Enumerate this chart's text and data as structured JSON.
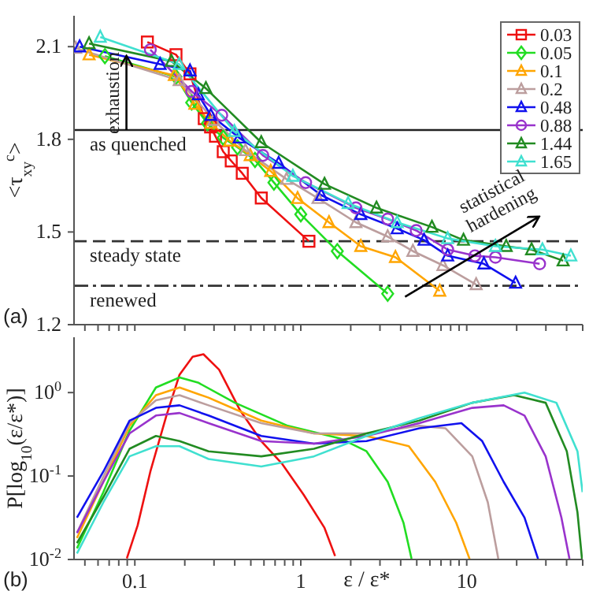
{
  "chart_data": [
    {
      "type": "line",
      "log": "x",
      "ylabel": "<τ$_{xy}$$^{c}$>",
      "xlim": [
        0.043,
        50
      ],
      "ylim": [
        1.2,
        2.2
      ],
      "tick_labels": "y",
      "legend": "top right",
      "line_style": "solid",
      "xticks": [
        {
          "value": 0.05,
          "label": null
        },
        {
          "value": 0.06,
          "label": null
        },
        {
          "value": 0.07,
          "label": null
        },
        {
          "value": 0.08,
          "label": null
        },
        {
          "value": 0.09,
          "label": null
        },
        0.1,
        {
          "value": 0.2,
          "label": null
        },
        {
          "value": 0.3,
          "label": null
        },
        {
          "value": 0.4,
          "label": null
        },
        {
          "value": 0.5,
          "label": null
        },
        {
          "value": 0.6,
          "label": null
        },
        {
          "value": 0.7,
          "label": null
        },
        {
          "value": 0.8,
          "label": null
        },
        {
          "value": 0.9,
          "label": null
        },
        1,
        {
          "value": 2,
          "label": null
        },
        {
          "value": 3,
          "label": null
        },
        {
          "value": 4,
          "label": null
        },
        {
          "value": 5,
          "label": null
        },
        {
          "value": 6,
          "label": null
        },
        {
          "value": 7,
          "label": null
        },
        {
          "value": 8,
          "label": null
        },
        {
          "value": 9,
          "label": null
        },
        10,
        {
          "value": 20,
          "label": null
        },
        {
          "value": 30,
          "label": null
        },
        {
          "value": 40,
          "label": null
        },
        {
          "value": 50,
          "label": null
        }
      ],
      "yticks": [
        1.2,
        1.5,
        1.8,
        2.1
      ],
      "series": [
        {
          "name": "0.03",
          "color": "#ee1111",
          "marker": "square",
          "x": [
            0.119,
            0.177,
            0.215,
            0.262,
            0.286,
            0.306,
            0.341,
            0.381,
            0.444,
            0.578,
            1.12
          ],
          "values": [
            2.115,
            2.074,
            2.012,
            1.867,
            1.84,
            1.81,
            1.76,
            1.73,
            1.69,
            1.61,
            1.47
          ]
        },
        {
          "name": "0.05",
          "color": "#22dd22",
          "marker": "diamond",
          "x": [
            0.066,
            0.177,
            0.22,
            0.274,
            0.341,
            0.416,
            0.53,
            0.689,
            1,
            1.66,
            3.34
          ],
          "values": [
            2.069,
            2.002,
            1.919,
            1.852,
            1.805,
            1.774,
            1.733,
            1.66,
            1.557,
            1.438,
            1.3
          ]
        },
        {
          "name": "0.1",
          "color": "#ffa500",
          "marker": "triangle",
          "x": [
            0.053,
            0.173,
            0.23,
            0.287,
            0.373,
            0.496,
            0.659,
            0.957,
            1.48,
            2.3,
            3.72,
            6.88
          ],
          "values": [
            2.074,
            2.007,
            1.914,
            1.852,
            1.795,
            1.748,
            1.697,
            1.609,
            1.531,
            1.454,
            1.418,
            1.309
          ]
        },
        {
          "name": "0.2",
          "color": "#bc9e9e",
          "marker": "triangle",
          "x": [
            0.044,
            0.185,
            0.299,
            0.464,
            0.821,
            1.27,
            2.15,
            3.34,
            4.74,
            7.19,
            11.4
          ],
          "values": [
            2.095,
            1.991,
            1.862,
            1.764,
            1.671,
            1.609,
            1.531,
            1.485,
            1.438,
            1.392,
            1.33
          ]
        },
        {
          "name": "0.48",
          "color": "#1111ee",
          "marker": "triangle",
          "x": [
            0.0465,
            0.142,
            0.215,
            0.241,
            0.287,
            0.425,
            0.736,
            1.33,
            2.3,
            3.81,
            5.53,
            7.68,
            12.7,
            19.7
          ],
          "values": [
            2.1,
            2.043,
            2.022,
            1.945,
            1.878,
            1.805,
            1.723,
            1.619,
            1.557,
            1.511,
            1.474,
            1.423,
            1.397,
            1.335
          ]
        },
        {
          "name": "0.88",
          "color": "#9933cc",
          "marker": "circle",
          "x": [
            0.124,
            0.22,
            0.334,
            0.591,
            1.07,
            2.15,
            3.34,
            4.96,
            7.68,
            11.2,
            14.9,
            27.5
          ],
          "values": [
            2.09,
            1.955,
            1.878,
            1.748,
            1.66,
            1.578,
            1.542,
            1.505,
            1.443,
            1.423,
            1.418,
            1.397
          ]
        },
        {
          "name": "1.44",
          "color": "#228b22",
          "marker": "triangle",
          "x": [
            0.053,
            0.166,
            0.268,
            0.578,
            1.39,
            2.86,
            6.17,
            9.56,
            17.3,
            24.6,
            38.1
          ],
          "values": [
            2.11,
            2.053,
            1.965,
            1.79,
            1.655,
            1.578,
            1.516,
            1.474,
            1.454,
            1.443,
            1.407
          ]
        },
        {
          "name": "1.65",
          "color": "#40e0d0",
          "marker": "triangle",
          "x": [
            0.0619,
            0.185,
            0.398,
            0.896,
            1.93,
            3.81,
            7.68,
            14.9,
            28.6,
            42.4
          ],
          "values": [
            2.131,
            2.043,
            1.826,
            1.681,
            1.593,
            1.531,
            1.479,
            1.454,
            1.443,
            1.423
          ]
        }
      ],
      "ref_lines": [
        {
          "axis": "y",
          "value": 1.83,
          "label": "as quenched",
          "color": "#222222",
          "line_style": "solid"
        },
        {
          "axis": "y",
          "value": 1.47,
          "label": "steady state",
          "color": "#333333",
          "line_style": "dashed"
        },
        {
          "axis": "y",
          "value": 1.326,
          "label": "renewed",
          "color": "#333333",
          "line_style": "dashdot"
        }
      ],
      "annotations": [
        "exhaustion",
        "statistical hardening",
        "(a)"
      ]
    },
    {
      "type": "line",
      "log": "xy",
      "xlabel": "ε / ε*",
      "ylabel": "P[log$_{10}$(ε/ε*)]",
      "xlim": [
        0.043,
        50
      ],
      "ylim": [
        0.01,
        4.6
      ],
      "marker": "none",
      "line_style": "solid",
      "xticks": [
        {
          "value": 0.05,
          "label": null
        },
        {
          "value": 0.06,
          "label": null
        },
        {
          "value": 0.07,
          "label": null
        },
        {
          "value": 0.08,
          "label": null
        },
        {
          "value": 0.09,
          "label": null
        },
        0.1,
        {
          "value": 0.2,
          "label": null
        },
        {
          "value": 0.3,
          "label": null
        },
        {
          "value": 0.4,
          "label": null
        },
        {
          "value": 0.5,
          "label": null
        },
        {
          "value": 0.6,
          "label": null
        },
        {
          "value": 0.7,
          "label": null
        },
        {
          "value": 0.8,
          "label": null
        },
        {
          "value": 0.9,
          "label": null
        },
        1,
        {
          "value": 2,
          "label": null
        },
        {
          "value": 3,
          "label": null
        },
        {
          "value": 4,
          "label": null
        },
        {
          "value": 5,
          "label": null
        },
        {
          "value": 6,
          "label": null
        },
        {
          "value": 7,
          "label": null
        },
        {
          "value": 8,
          "label": null
        },
        {
          "value": 9,
          "label": null
        },
        10,
        {
          "value": 20,
          "label": null
        },
        {
          "value": 30,
          "label": null
        },
        {
          "value": 40,
          "label": null
        },
        {
          "value": 50,
          "label": null
        }
      ],
      "yticks": [
        {
          "value": 0.01,
          "label": "10$^{-2}$"
        },
        {
          "value": 0.1,
          "label": "10$^{-1}$"
        },
        {
          "value": 1,
          "label": "10$^{0}$"
        }
      ],
      "series": [
        {
          "color": "#ee1111",
          "x": [
            0.0895,
            0.104,
            0.124,
            0.155,
            0.186,
            0.223,
            0.259,
            0.322,
            0.431,
            0.578,
            0.774,
            1.04,
            1.39,
            1.61
          ],
          "values": [
            0.0103,
            0.0257,
            0.113,
            0.531,
            1.64,
            2.68,
            2.88,
            1.88,
            0.611,
            0.262,
            0.139,
            0.0598,
            0.0239,
            0.011
          ]
        },
        {
          "color": "#22dd22",
          "x": [
            0.0448,
            0.0646,
            0.0929,
            0.134,
            0.186,
            0.24,
            0.401,
            0.834,
            1.73,
            2.49,
            3.34,
            4.16,
            4.65
          ],
          "values": [
            0.0136,
            0.0641,
            0.35,
            1.15,
            1.52,
            1.32,
            0.755,
            0.4,
            0.282,
            0.198,
            0.0851,
            0.0275,
            0.0102
          ]
        },
        {
          "color": "#ffa500",
          "x": [
            0.0448,
            0.0646,
            0.0929,
            0.134,
            0.186,
            0.278,
            0.578,
            1.2,
            2.49,
            4.48,
            6.46,
            8.65,
            10.4
          ],
          "values": [
            0.0181,
            0.0851,
            0.4,
            0.931,
            1.15,
            0.869,
            0.461,
            0.324,
            0.302,
            0.228,
            0.0851,
            0.0275,
            0.0102
          ]
        },
        {
          "color": "#bc9e9e",
          "x": [
            0.0448,
            0.0646,
            0.0929,
            0.134,
            0.186,
            0.278,
            0.578,
            1.2,
            2.49,
            5.18,
            7.46,
            10.8,
            13.4,
            15.5
          ],
          "values": [
            0.0208,
            0.098,
            0.43,
            0.809,
            0.931,
            0.703,
            0.43,
            0.324,
            0.324,
            0.4,
            0.373,
            0.172,
            0.0484,
            0.0102
          ]
        },
        {
          "color": "#1111ee",
          "x": [
            0.0448,
            0.0646,
            0.0929,
            0.134,
            0.186,
            0.278,
            0.578,
            1.2,
            2.49,
            5.18,
            9.29,
            12.4,
            16.7,
            22.3,
            26.9
          ],
          "values": [
            0.0318,
            0.113,
            0.461,
            0.656,
            0.703,
            0.531,
            0.302,
            0.244,
            0.262,
            0.373,
            0.43,
            0.262,
            0.0851,
            0.0318,
            0.0102
          ]
        },
        {
          "color": "#9933cc",
          "x": [
            0.0448,
            0.0646,
            0.0929,
            0.134,
            0.186,
            0.278,
            0.578,
            1.2,
            2.49,
            5.18,
            10.8,
            16.7,
            22.3,
            29.9,
            37.2,
            41.6
          ],
          "values": [
            0.0208,
            0.0851,
            0.324,
            0.531,
            0.569,
            0.43,
            0.262,
            0.244,
            0.302,
            0.43,
            0.656,
            0.703,
            0.531,
            0.172,
            0.0318,
            0.0102
          ]
        },
        {
          "color": "#228b22",
          "x": [
            0.0448,
            0.0646,
            0.0929,
            0.134,
            0.186,
            0.278,
            0.578,
            1.2,
            2.49,
            5.18,
            10.8,
            19.3,
            29.9,
            40.1,
            46.5,
            49.5
          ],
          "values": [
            0.0157,
            0.0557,
            0.212,
            0.302,
            0.262,
            0.198,
            0.172,
            0.212,
            0.324,
            0.461,
            0.755,
            0.931,
            0.755,
            0.198,
            0.0366,
            0.0102
          ]
        },
        {
          "color": "#40e0d0",
          "x": [
            0.0448,
            0.0646,
            0.0929,
            0.134,
            0.186,
            0.278,
            0.578,
            1.2,
            2.49,
            5.18,
            10.8,
            22.3,
            34.7,
            46.5,
            49.9
          ],
          "values": [
            0.0118,
            0.0484,
            0.172,
            0.228,
            0.228,
            0.16,
            0.13,
            0.172,
            0.302,
            0.494,
            0.755,
            1.0,
            0.755,
            0.198,
            0.0641
          ]
        }
      ],
      "annotations": [
        "(b)"
      ]
    }
  ]
}
